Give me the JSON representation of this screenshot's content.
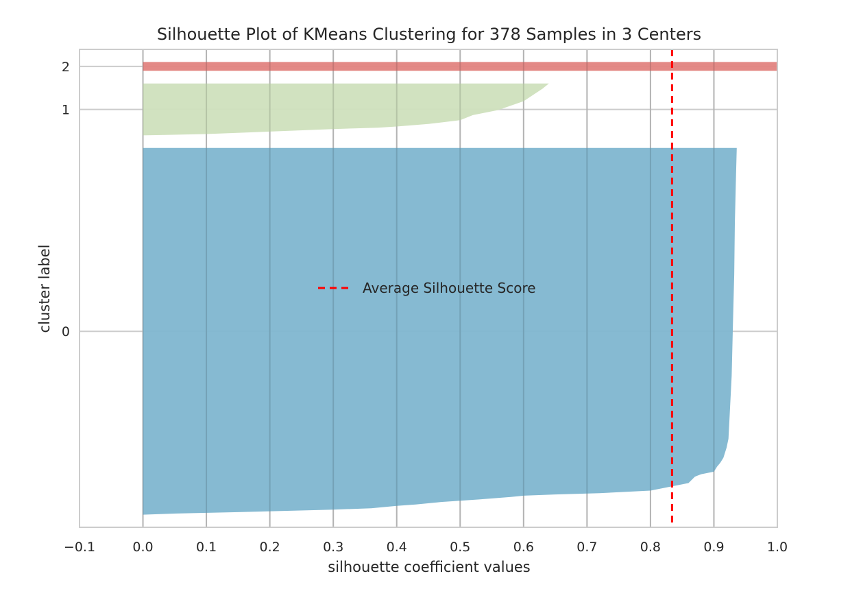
{
  "chart_data": {
    "type": "area",
    "title": "Silhouette Plot of KMeans Clustering for 378 Samples in 3 Centers",
    "xlabel": "silhouette coefficient values",
    "ylabel": "cluster label",
    "xlim": [
      -0.1,
      1.0
    ],
    "ylim": [
      0,
      378
    ],
    "x_ticks": [
      -0.1,
      0.0,
      0.1,
      0.2,
      0.3,
      0.4,
      0.5,
      0.6,
      0.7,
      0.8,
      0.9,
      1.0
    ],
    "x_tick_labels": [
      "−0.1",
      "0.0",
      "0.1",
      "0.2",
      "0.3",
      "0.4",
      "0.5",
      "0.6",
      "0.7",
      "0.8",
      "0.9",
      "1.0"
    ],
    "y_tick_labels": [
      "0",
      "1",
      "2"
    ],
    "grid": true,
    "average_silhouette_score": 0.834,
    "legend": {
      "label": "Average Silhouette Score",
      "placement": "center"
    },
    "series": [
      {
        "name": "0",
        "color": "#7fb6d0",
        "y_range": [
          10,
          300
        ],
        "profile": [
          [
            0.0,
            10
          ],
          [
            0.06,
            11
          ],
          [
            0.15,
            12
          ],
          [
            0.3,
            14
          ],
          [
            0.36,
            15
          ],
          [
            0.4,
            17
          ],
          [
            0.43,
            18
          ],
          [
            0.47,
            20
          ],
          [
            0.53,
            22
          ],
          [
            0.58,
            24
          ],
          [
            0.6,
            25
          ],
          [
            0.65,
            26
          ],
          [
            0.72,
            27
          ],
          [
            0.8,
            29
          ],
          [
            0.83,
            32
          ],
          [
            0.86,
            35
          ],
          [
            0.87,
            40
          ],
          [
            0.88,
            42
          ],
          [
            0.9,
            44
          ],
          [
            0.905,
            48
          ],
          [
            0.91,
            51
          ],
          [
            0.915,
            55
          ],
          [
            0.92,
            63
          ],
          [
            0.923,
            70
          ],
          [
            0.925,
            90
          ],
          [
            0.928,
            120
          ],
          [
            0.93,
            160
          ],
          [
            0.932,
            200
          ],
          [
            0.933,
            240
          ],
          [
            0.935,
            280
          ],
          [
            0.936,
            300
          ]
        ]
      },
      {
        "name": "1",
        "color": "#cfe0bd",
        "y_range": [
          310,
          351
        ],
        "profile": [
          [
            0.0,
            310
          ],
          [
            0.1,
            311
          ],
          [
            0.2,
            313
          ],
          [
            0.3,
            315
          ],
          [
            0.37,
            316
          ],
          [
            0.4,
            317
          ],
          [
            0.45,
            319
          ],
          [
            0.5,
            322
          ],
          [
            0.52,
            326
          ],
          [
            0.56,
            330
          ],
          [
            0.6,
            337
          ],
          [
            0.63,
            347
          ],
          [
            0.64,
            351
          ]
        ]
      },
      {
        "name": "2",
        "color": "#e28380",
        "y_range": [
          361,
          368
        ],
        "profile": [
          [
            0.0,
            361
          ],
          [
            1.0,
            361
          ],
          [
            1.0,
            368
          ]
        ]
      }
    ],
    "colors": {
      "average_line": "#ff0000",
      "grid": "#cccccc",
      "frame": "#cccccc"
    }
  }
}
